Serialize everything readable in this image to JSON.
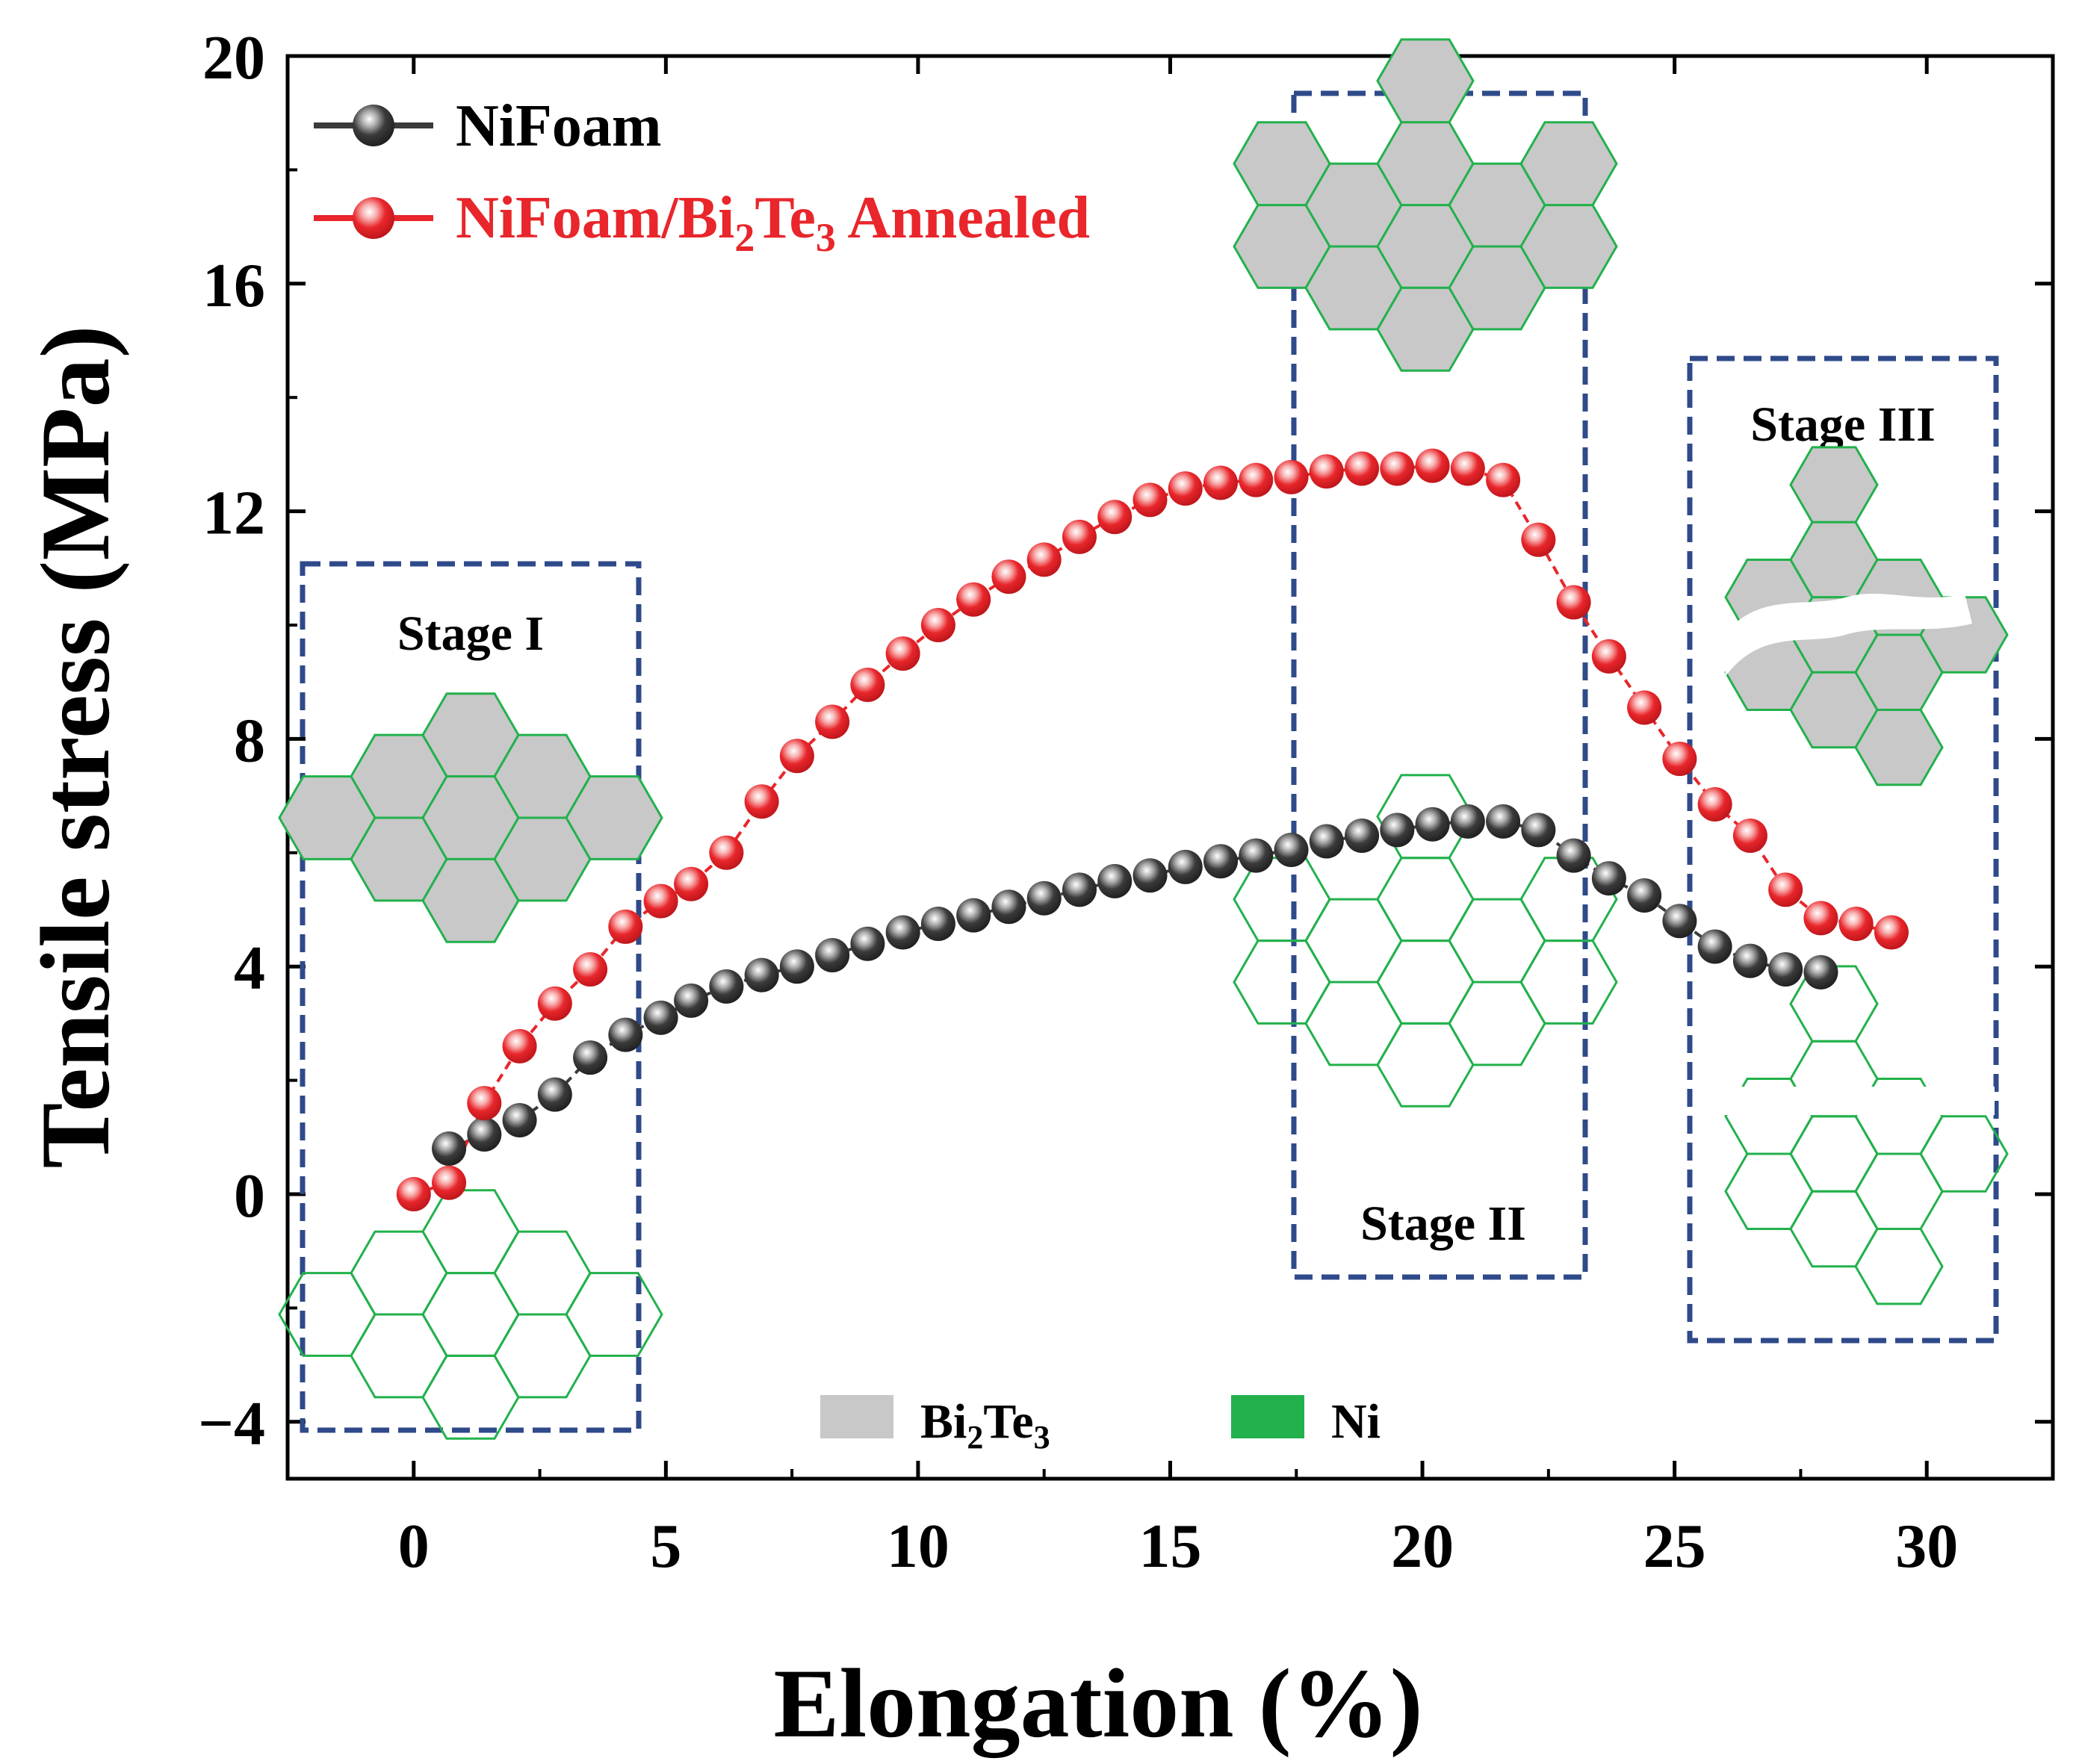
{
  "chart_data": {
    "type": "scatter",
    "xlabel": "Elongation (%)",
    "ylabel": "Tensile stress (MPa)",
    "xlim": [
      -2.5,
      32.5
    ],
    "ylim": [
      -5,
      20
    ],
    "xticks": [
      0,
      5,
      10,
      15,
      20,
      25,
      30
    ],
    "yticks": [
      -4,
      0,
      4,
      8,
      12,
      16,
      20
    ],
    "xtick_labels": [
      "0",
      "5",
      "10",
      "15",
      "20",
      "25",
      "30"
    ],
    "ytick_labels": [
      "−4",
      "0",
      "4",
      "8",
      "12",
      "16",
      "20"
    ],
    "grid": false,
    "legend_position": "top-left",
    "series": [
      {
        "name": "NiFoam",
        "color": "#3b3b3b",
        "x": [
          0.7,
          1.4,
          2.1,
          2.8,
          3.5,
          4.2,
          4.9,
          5.5,
          6.2,
          6.9,
          7.6,
          8.3,
          9.0,
          9.7,
          10.4,
          11.1,
          11.8,
          12.5,
          13.2,
          13.9,
          14.6,
          15.3,
          16.0,
          16.7,
          17.4,
          18.1,
          18.8,
          19.5,
          20.2,
          20.9,
          21.6,
          22.3,
          23.0,
          23.7,
          24.4,
          25.1,
          25.8,
          26.5,
          27.2,
          27.9
        ],
        "y": [
          0.8,
          1.05,
          1.3,
          1.75,
          2.4,
          2.8,
          3.1,
          3.4,
          3.65,
          3.85,
          4.0,
          4.2,
          4.4,
          4.6,
          4.75,
          4.9,
          5.05,
          5.2,
          5.35,
          5.5,
          5.6,
          5.75,
          5.85,
          5.95,
          6.05,
          6.2,
          6.3,
          6.4,
          6.5,
          6.55,
          6.55,
          6.4,
          5.95,
          5.55,
          5.25,
          4.8,
          4.35,
          4.1,
          3.95,
          3.9
        ]
      },
      {
        "name": "NiFoam/Bi2Te3 Annealed",
        "name_base": "NiFoam/Bi",
        "name_sub1": "2",
        "name_mid": "Te",
        "name_sub2": "3",
        "name_tail": " Annealed",
        "color": "#e8262b",
        "x": [
          0.0,
          0.7,
          1.4,
          2.1,
          2.8,
          3.5,
          4.2,
          4.9,
          5.5,
          6.2,
          6.9,
          7.6,
          8.3,
          9.0,
          9.7,
          10.4,
          11.1,
          11.8,
          12.5,
          13.2,
          13.9,
          14.6,
          15.3,
          16.0,
          16.7,
          17.4,
          18.1,
          18.8,
          19.5,
          20.2,
          20.9,
          21.6,
          22.3,
          23.0,
          23.7,
          24.4,
          25.1,
          25.8,
          26.5,
          27.2,
          27.9,
          28.6,
          29.3
        ],
        "y": [
          0.0,
          0.2,
          1.6,
          2.6,
          3.35,
          3.95,
          4.7,
          5.15,
          5.45,
          6.0,
          6.9,
          7.7,
          8.3,
          8.95,
          9.5,
          10.0,
          10.45,
          10.85,
          11.15,
          11.55,
          11.9,
          12.2,
          12.4,
          12.5,
          12.55,
          12.6,
          12.7,
          12.75,
          12.75,
          12.8,
          12.75,
          12.55,
          11.5,
          10.4,
          9.45,
          8.55,
          7.65,
          6.85,
          6.3,
          5.35,
          4.85,
          4.75,
          4.6
        ]
      }
    ]
  },
  "stages": {
    "stage1": "Stage I",
    "stage2": "Stage II",
    "stage3": "Stage III"
  },
  "materials_legend": {
    "bi_base": "Bi",
    "bi_sub1": "2",
    "bi_mid": "Te",
    "bi_sub2": "3",
    "ni": "Ni",
    "bi_color": "#c8c8c8",
    "ni_color": "#22b14c"
  }
}
